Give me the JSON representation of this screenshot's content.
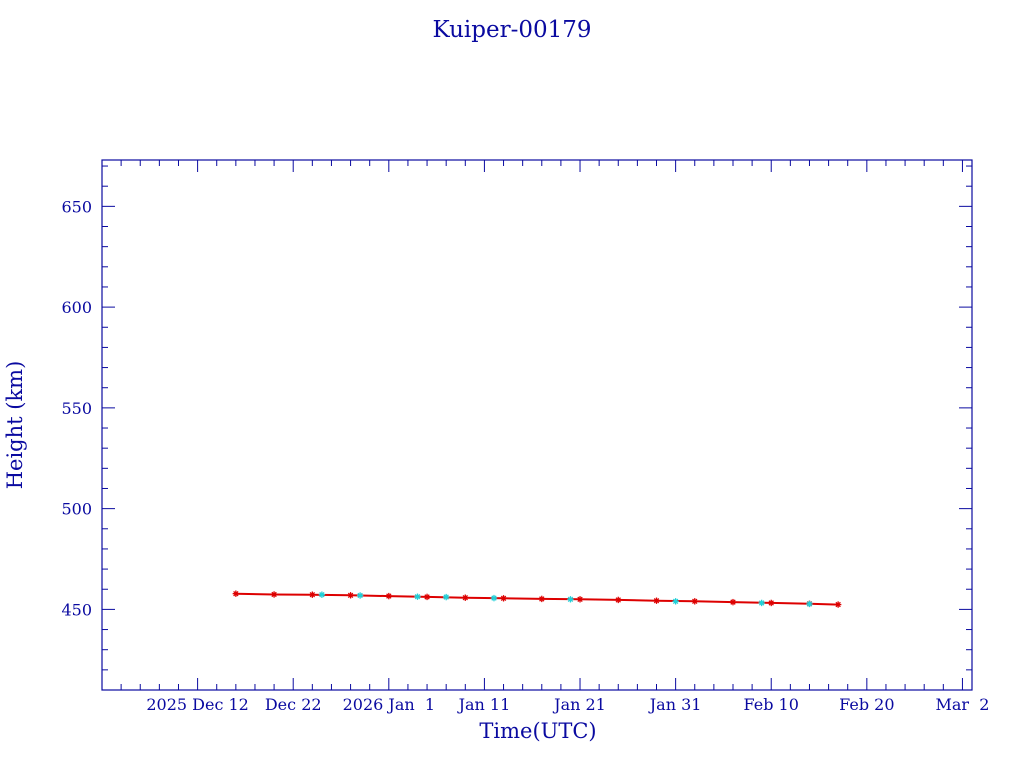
{
  "chart_data": {
    "type": "scatter",
    "title": "Kuiper-00179",
    "xlabel": "Time(UTC)",
    "ylabel": "Height (km)",
    "xlim": [
      "2025-12-02",
      "2026-03-03"
    ],
    "ylim": [
      410,
      673
    ],
    "x_tick_labels": [
      {
        "date": "2025-12-12",
        "label": "2025 Dec 12"
      },
      {
        "date": "2025-12-22",
        "label": "Dec 22"
      },
      {
        "date": "2026-01-01",
        "label": "2026 Jan  1"
      },
      {
        "date": "2026-01-11",
        "label": "Jan 11"
      },
      {
        "date": "2026-01-21",
        "label": "Jan 21"
      },
      {
        "date": "2026-01-31",
        "label": "Jan 31"
      },
      {
        "date": "2026-02-10",
        "label": "Feb 10"
      },
      {
        "date": "2026-02-20",
        "label": "Feb 20"
      },
      {
        "date": "2026-03-02",
        "label": "Mar  2"
      }
    ],
    "y_ticks": [
      450,
      500,
      550,
      600,
      650
    ],
    "y_tick_labels": [
      "450",
      "500",
      "550",
      "600",
      "650"
    ],
    "grid": false,
    "colors": {
      "axes": "#0a0aa0",
      "series_main": "#dd0000",
      "series_highlight": "#20d0d8"
    },
    "series": [
      {
        "marker": "star",
        "color": "#dd0000",
        "x": [
          "2025-12-16",
          "2025-12-20",
          "2025-12-24",
          "2025-12-28",
          "2026-01-01",
          "2026-01-05",
          "2026-01-09",
          "2026-01-13",
          "2026-01-17",
          "2026-01-21",
          "2026-01-25",
          "2026-01-29",
          "2026-02-02",
          "2026-02-06",
          "2026-02-10",
          "2026-02-14",
          "2026-02-17"
        ],
        "y": [
          457.8,
          457.4,
          457.3,
          457.0,
          456.6,
          456.2,
          455.8,
          455.5,
          455.2,
          455.0,
          454.7,
          454.3,
          454.0,
          453.6,
          453.2,
          452.8,
          452.4
        ]
      },
      {
        "marker": "star",
        "color": "#20d0d8",
        "x": [
          "2025-12-25",
          "2025-12-29",
          "2026-01-04",
          "2026-01-07",
          "2026-01-12",
          "2026-01-20",
          "2026-01-31",
          "2026-02-09",
          "2026-02-14"
        ],
        "y": [
          457.3,
          456.9,
          456.3,
          456.1,
          455.6,
          455.0,
          454.0,
          453.2,
          452.7
        ]
      }
    ]
  }
}
